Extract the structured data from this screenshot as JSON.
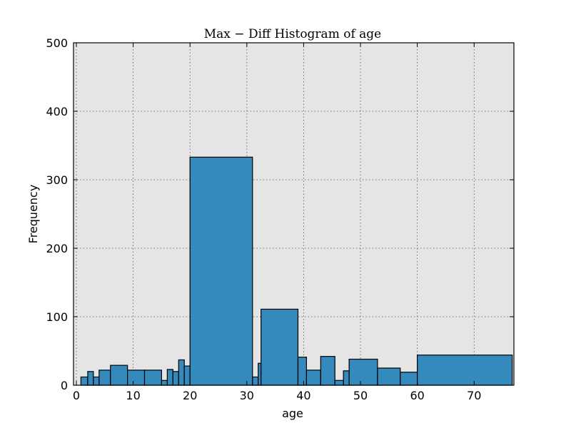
{
  "chart_data": {
    "type": "bar",
    "title": "Max − Diff Histogram of age",
    "xlabel": "age",
    "ylabel": "Frequency",
    "xlim": [
      -0.5,
      77
    ],
    "ylim": [
      0,
      500
    ],
    "xticks": [
      0,
      10,
      20,
      30,
      40,
      50,
      60,
      70
    ],
    "yticks": [
      0,
      100,
      200,
      300,
      400,
      500
    ],
    "grid": true,
    "colors": {
      "bar_fill": "#348abd",
      "bar_edge": "#000000",
      "plot_background": "#e5e5e5",
      "grid": "#555555"
    },
    "bins": [
      {
        "x0": 0.8,
        "x1": 2.0,
        "count": 12
      },
      {
        "x0": 2.0,
        "x1": 3.0,
        "count": 20
      },
      {
        "x0": 3.0,
        "x1": 4.0,
        "count": 12
      },
      {
        "x0": 4.0,
        "x1": 6.0,
        "count": 22
      },
      {
        "x0": 6.0,
        "x1": 9.0,
        "count": 29
      },
      {
        "x0": 9.0,
        "x1": 12.0,
        "count": 22
      },
      {
        "x0": 12.0,
        "x1": 15.0,
        "count": 22
      },
      {
        "x0": 15.0,
        "x1": 16.0,
        "count": 7
      },
      {
        "x0": 16.0,
        "x1": 17.0,
        "count": 23
      },
      {
        "x0": 17.0,
        "x1": 18.0,
        "count": 20
      },
      {
        "x0": 18.0,
        "x1": 19.0,
        "count": 37
      },
      {
        "x0": 19.0,
        "x1": 20.0,
        "count": 28
      },
      {
        "x0": 20.0,
        "x1": 31.0,
        "count": 333
      },
      {
        "x0": 31.0,
        "x1": 32.0,
        "count": 12
      },
      {
        "x0": 32.0,
        "x1": 32.5,
        "count": 32
      },
      {
        "x0": 32.5,
        "x1": 39.0,
        "count": 111
      },
      {
        "x0": 39.0,
        "x1": 40.5,
        "count": 41
      },
      {
        "x0": 40.5,
        "x1": 43.0,
        "count": 22
      },
      {
        "x0": 43.0,
        "x1": 45.5,
        "count": 42
      },
      {
        "x0": 45.5,
        "x1": 47.0,
        "count": 7
      },
      {
        "x0": 47.0,
        "x1": 48.0,
        "count": 21
      },
      {
        "x0": 48.0,
        "x1": 53.0,
        "count": 38
      },
      {
        "x0": 53.0,
        "x1": 57.0,
        "count": 25
      },
      {
        "x0": 57.0,
        "x1": 60.0,
        "count": 19
      },
      {
        "x0": 60.0,
        "x1": 76.7,
        "count": 44
      }
    ]
  }
}
